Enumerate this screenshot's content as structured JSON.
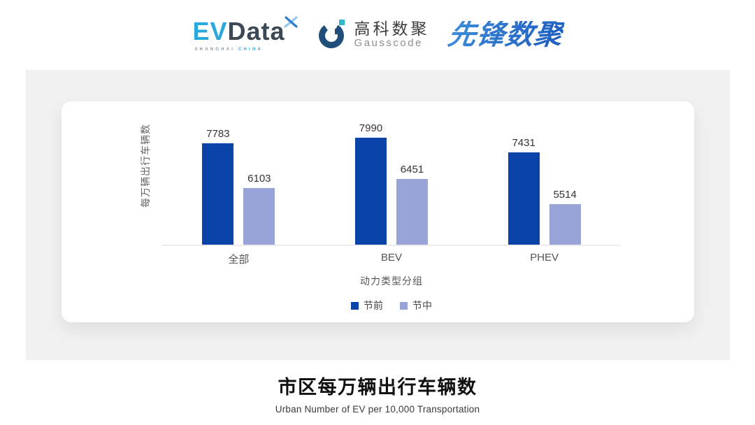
{
  "header": {
    "evdata_logo": {
      "ev": "EV",
      "data": "Data",
      "sub_left": "SHANGHAI",
      "sub_right": "CHINA"
    },
    "gausscode_logo": {
      "cn": "高科数聚",
      "en": "Gausscode"
    },
    "pioneer_logo": {
      "text": "先锋数聚"
    }
  },
  "chart_data": {
    "type": "bar",
    "categories": [
      "全部",
      "BEV",
      "PHEV"
    ],
    "series": [
      {
        "name": "节前",
        "color": "#0A44A8",
        "values": [
          7783,
          7990,
          7431
        ]
      },
      {
        "name": "节中",
        "color": "#98A3D7",
        "values": [
          6103,
          6451,
          5514
        ]
      }
    ],
    "xlabel": "动力类型分组",
    "ylabel": "每万辆出行车辆数",
    "ylim": [
      4000,
      9400
    ],
    "grid": false,
    "legend_position": "bottom",
    "value_labels": true
  },
  "footer": {
    "title": "市区每万辆出行车辆数",
    "subtitle": "Urban Number of EV per 10,000 Transportation"
  },
  "colors": {
    "panel_bg": "#F0F0F0",
    "card_bg": "#FFFFFF",
    "axis_line": "#ECECEC",
    "evdata_blue": "#29A8DD",
    "evdata_dark": "#3C4854",
    "gausscode_navy": "#1E4E79",
    "gausscode_teal": "#2FB8C9",
    "pioneer_blue_start": "#3E8EDC",
    "pioneer_blue_end": "#1D5FC0"
  }
}
